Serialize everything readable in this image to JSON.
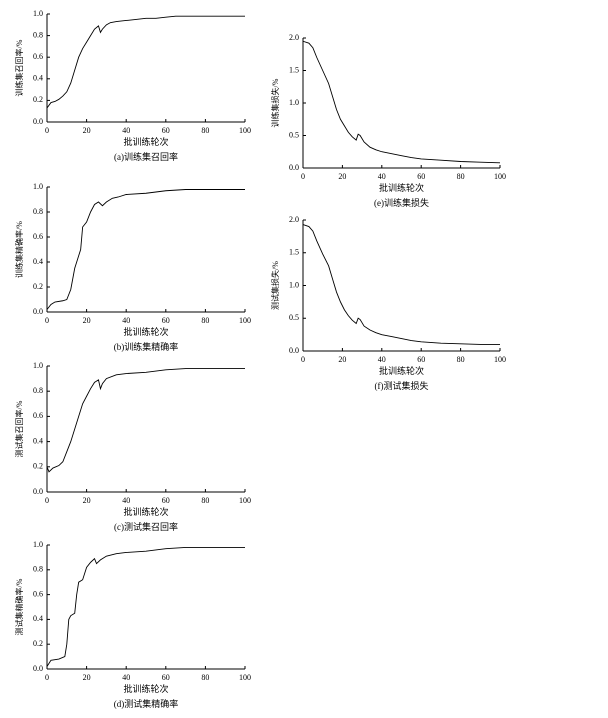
{
  "chart_data": [
    {
      "type": "line",
      "caption": "(a)训练集召回率",
      "x_label": "批训练轮次",
      "y_label": "训练集召回率/%",
      "color": "#000000",
      "x": [
        0,
        2,
        4,
        6,
        8,
        10,
        12,
        14,
        16,
        18,
        20,
        22,
        24,
        26,
        27,
        28,
        30,
        32,
        35,
        40,
        45,
        50,
        55,
        60,
        65,
        70,
        80,
        90,
        100
      ],
      "values": [
        0.13,
        0.18,
        0.19,
        0.21,
        0.24,
        0.28,
        0.36,
        0.48,
        0.6,
        0.68,
        0.74,
        0.8,
        0.86,
        0.89,
        0.83,
        0.86,
        0.9,
        0.92,
        0.93,
        0.94,
        0.95,
        0.96,
        0.96,
        0.97,
        0.98,
        0.98,
        0.98,
        0.98,
        0.98
      ],
      "xlim": [
        0,
        100
      ],
      "xticks": [
        0,
        20,
        40,
        60,
        80,
        100
      ],
      "ylim": [
        0,
        1
      ],
      "yticks": [
        {
          "value": 0,
          "label": "0.0"
        },
        0.2,
        0.4,
        0.6,
        0.8,
        {
          "value": 1,
          "label": "1.0"
        }
      ]
    },
    {
      "type": "line",
      "caption": "(b)训练集精确率",
      "x_label": "批训练轮次",
      "y_label": "训练集精确率/%",
      "color": "#000000",
      "x": [
        0,
        2,
        4,
        8,
        10,
        12,
        14,
        16,
        17,
        18,
        20,
        22,
        24,
        26,
        28,
        30,
        33,
        36,
        40,
        50,
        60,
        70,
        80,
        100
      ],
      "values": [
        0.02,
        0.06,
        0.08,
        0.09,
        0.1,
        0.18,
        0.35,
        0.45,
        0.5,
        0.68,
        0.72,
        0.8,
        0.86,
        0.88,
        0.85,
        0.88,
        0.91,
        0.92,
        0.94,
        0.95,
        0.97,
        0.98,
        0.98,
        0.98
      ],
      "xlim": [
        0,
        100
      ],
      "xticks": [
        0,
        20,
        40,
        60,
        80,
        100
      ],
      "ylim": [
        0,
        1
      ],
      "yticks": [
        {
          "value": 0,
          "label": "0.0"
        },
        0.2,
        0.4,
        0.6,
        0.8,
        {
          "value": 1,
          "label": "1.0"
        }
      ]
    },
    {
      "type": "line",
      "caption": "(c)测试集召回率",
      "x_label": "批训练轮次",
      "y_label": "测试集召回率/%",
      "color": "#000000",
      "x": [
        0,
        1,
        3,
        6,
        8,
        10,
        12,
        14,
        16,
        18,
        20,
        22,
        24,
        26,
        27,
        28,
        30,
        35,
        40,
        50,
        60,
        70,
        80,
        100
      ],
      "values": [
        0.2,
        0.16,
        0.19,
        0.21,
        0.24,
        0.32,
        0.4,
        0.5,
        0.6,
        0.7,
        0.76,
        0.82,
        0.87,
        0.89,
        0.82,
        0.86,
        0.9,
        0.93,
        0.94,
        0.95,
        0.97,
        0.98,
        0.98,
        0.98
      ],
      "xlim": [
        0,
        100
      ],
      "xticks": [
        0,
        20,
        40,
        60,
        80,
        100
      ],
      "ylim": [
        0,
        1
      ],
      "yticks": [
        {
          "value": 0,
          "label": "0.0"
        },
        0.2,
        0.4,
        0.6,
        0.8,
        {
          "value": 1,
          "label": "1.0"
        }
      ]
    },
    {
      "type": "line",
      "caption": "(d)测试集精确率",
      "x_label": "批训练轮次",
      "y_label": "测试集精确率/%",
      "color": "#000000",
      "x": [
        0,
        2,
        6,
        9,
        10,
        11,
        12,
        14,
        15,
        16,
        18,
        20,
        22,
        24,
        25,
        27,
        30,
        35,
        40,
        50,
        60,
        70,
        80,
        100
      ],
      "values": [
        0.02,
        0.07,
        0.08,
        0.1,
        0.2,
        0.4,
        0.43,
        0.45,
        0.6,
        0.7,
        0.72,
        0.82,
        0.86,
        0.89,
        0.85,
        0.88,
        0.91,
        0.93,
        0.94,
        0.95,
        0.97,
        0.98,
        0.98,
        0.98
      ],
      "xlim": [
        0,
        100
      ],
      "xticks": [
        0,
        20,
        40,
        60,
        80,
        100
      ],
      "ylim": [
        0,
        1
      ],
      "yticks": [
        {
          "value": 0,
          "label": "0.0"
        },
        0.2,
        0.4,
        0.6,
        0.8,
        {
          "value": 1,
          "label": "1.0"
        }
      ]
    },
    {
      "type": "line",
      "caption": "(e)训练集损失",
      "x_label": "批训练轮次",
      "y_label": "训练集损失/%",
      "color": "#000000",
      "x": [
        0,
        3,
        5,
        7,
        10,
        13,
        15,
        17,
        19,
        21,
        23,
        25,
        27,
        28,
        29,
        31,
        34,
        37,
        40,
        45,
        50,
        55,
        60,
        70,
        80,
        90,
        100
      ],
      "values": [
        1.95,
        1.92,
        1.85,
        1.7,
        1.5,
        1.3,
        1.1,
        0.9,
        0.75,
        0.65,
        0.55,
        0.48,
        0.43,
        0.52,
        0.5,
        0.4,
        0.32,
        0.28,
        0.25,
        0.22,
        0.19,
        0.16,
        0.14,
        0.12,
        0.1,
        0.09,
        0.08
      ],
      "xlim": [
        0,
        100
      ],
      "xticks": [
        0,
        20,
        40,
        60,
        80,
        100
      ],
      "ylim": [
        0,
        2
      ],
      "yticks": [
        {
          "value": 0,
          "label": "0.0"
        },
        0.5,
        {
          "value": 1,
          "label": "1.0"
        },
        1.5,
        {
          "value": 2,
          "label": "2.0"
        }
      ]
    },
    {
      "type": "line",
      "caption": "(f)测试集损失",
      "x_label": "批训练轮次",
      "y_label": "测试集损失/%",
      "color": "#000000",
      "x": [
        0,
        3,
        5,
        7,
        10,
        13,
        15,
        17,
        19,
        21,
        23,
        25,
        27,
        28,
        29,
        31,
        34,
        37,
        40,
        45,
        50,
        55,
        60,
        70,
        80,
        90,
        100
      ],
      "values": [
        1.93,
        1.9,
        1.83,
        1.68,
        1.48,
        1.3,
        1.1,
        0.9,
        0.75,
        0.63,
        0.54,
        0.47,
        0.42,
        0.5,
        0.48,
        0.38,
        0.32,
        0.28,
        0.25,
        0.22,
        0.19,
        0.16,
        0.14,
        0.12,
        0.11,
        0.1,
        0.1
      ],
      "xlim": [
        0,
        100
      ],
      "xticks": [
        0,
        20,
        40,
        60,
        80,
        100
      ],
      "ylim": [
        0,
        2
      ],
      "yticks": [
        {
          "value": 0,
          "label": "0.0"
        },
        0.5,
        {
          "value": 1,
          "label": "1.0"
        },
        1.5,
        {
          "value": 2,
          "label": "2.0"
        }
      ]
    }
  ]
}
